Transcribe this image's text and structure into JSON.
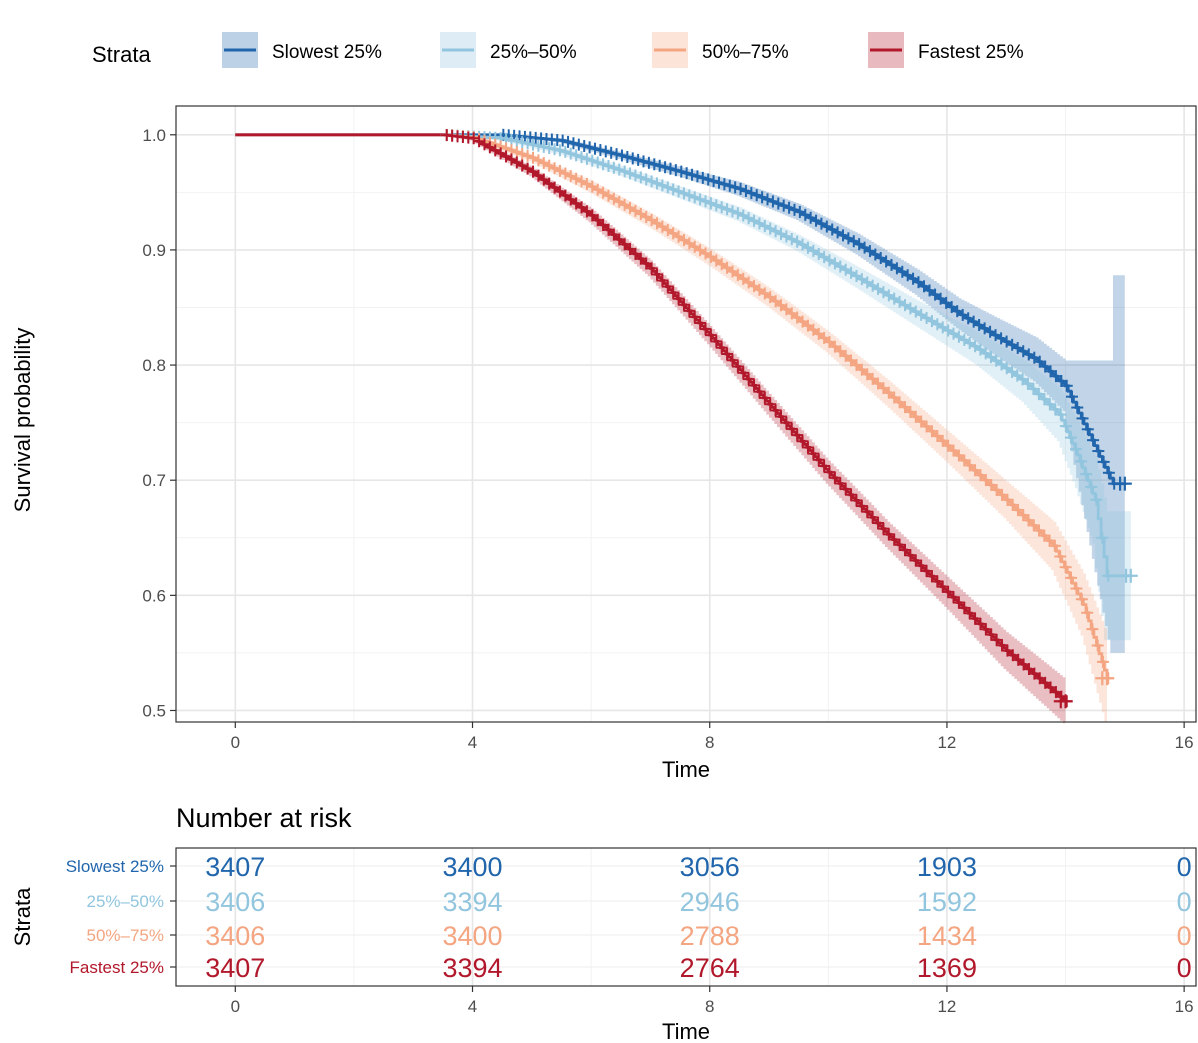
{
  "legend": {
    "title": "Strata",
    "position": "top"
  },
  "chart_data": [
    {
      "type": "line",
      "subtype": "kaplan-meier",
      "title": "",
      "xlabel": "Time",
      "ylabel": "Survival probability",
      "xlim": [
        -1,
        16.2
      ],
      "ylim": [
        0.49,
        1.025
      ],
      "xticks": [
        0,
        4,
        8,
        12,
        16
      ],
      "yticks": [
        0.5,
        0.6,
        0.7,
        0.8,
        0.9,
        1.0
      ],
      "ytick_labels": [
        "0.5",
        "0.6",
        "0.7",
        "0.8",
        "0.9",
        "1.0"
      ],
      "grid": true,
      "series": [
        {
          "name": "Slowest 25%",
          "color": "#2166ac",
          "x": [
            0,
            3.5,
            4.5,
            5.5,
            6.5,
            7.5,
            8.5,
            9.5,
            10.5,
            11.5,
            12.2,
            12.8,
            13.5,
            14.0,
            14.8,
            15.0
          ],
          "y": [
            1.0,
            1.0,
            1.0,
            0.995,
            0.982,
            0.968,
            0.953,
            0.933,
            0.905,
            0.872,
            0.845,
            0.826,
            0.805,
            0.782,
            0.697,
            0.697
          ],
          "ci_lower": [
            1.0,
            1.0,
            1.0,
            0.993,
            0.979,
            0.964,
            0.947,
            0.926,
            0.896,
            0.861,
            0.832,
            0.81,
            0.786,
            0.76,
            0.55,
            0.55
          ],
          "ci_upper": [
            1.0,
            1.0,
            1.0,
            0.997,
            0.985,
            0.972,
            0.959,
            0.94,
            0.914,
            0.883,
            0.858,
            0.842,
            0.824,
            0.804,
            0.878,
            0.878
          ]
        },
        {
          "name": "25%–50%",
          "color": "#92c5de",
          "x": [
            0,
            3.5,
            4.5,
            5.5,
            6.5,
            7.5,
            8.5,
            9.5,
            10.5,
            11.5,
            12.5,
            13.3,
            13.9,
            14.2,
            14.5,
            14.7,
            15.1
          ],
          "y": [
            1.0,
            1.0,
            0.997,
            0.986,
            0.969,
            0.95,
            0.931,
            0.906,
            0.876,
            0.845,
            0.815,
            0.786,
            0.757,
            0.722,
            0.683,
            0.617,
            0.617
          ],
          "ci_lower": [
            1.0,
            1.0,
            0.995,
            0.983,
            0.965,
            0.945,
            0.925,
            0.899,
            0.867,
            0.834,
            0.801,
            0.768,
            0.734,
            0.693,
            0.645,
            0.561,
            0.561
          ],
          "ci_upper": [
            1.0,
            1.0,
            0.999,
            0.989,
            0.973,
            0.955,
            0.937,
            0.913,
            0.885,
            0.856,
            0.829,
            0.804,
            0.78,
            0.751,
            0.721,
            0.673,
            0.673
          ]
        },
        {
          "name": "50%–75%",
          "color": "#f4a582",
          "x": [
            0,
            3.5,
            4.0,
            5.0,
            6.0,
            7.0,
            8.0,
            9.0,
            10.0,
            11.0,
            12.0,
            13.0,
            13.8,
            14.3,
            14.7
          ],
          "y": [
            1.0,
            1.0,
            0.998,
            0.98,
            0.955,
            0.926,
            0.894,
            0.859,
            0.82,
            0.776,
            0.73,
            0.683,
            0.643,
            0.592,
            0.528
          ],
          "ci_lower": [
            1.0,
            1.0,
            0.996,
            0.977,
            0.95,
            0.92,
            0.887,
            0.851,
            0.811,
            0.765,
            0.717,
            0.667,
            0.622,
            0.565,
            0.49
          ],
          "ci_upper": [
            1.0,
            1.0,
            1.0,
            0.983,
            0.96,
            0.932,
            0.901,
            0.867,
            0.829,
            0.787,
            0.743,
            0.699,
            0.664,
            0.619,
            0.566
          ]
        },
        {
          "name": "Fastest 25%",
          "color": "#b2182b",
          "x": [
            0,
            3.5,
            4.0,
            5.0,
            6.0,
            7.0,
            8.0,
            9.0,
            10.0,
            11.0,
            12.0,
            13.0,
            14.0
          ],
          "y": [
            1.0,
            1.0,
            0.997,
            0.968,
            0.93,
            0.884,
            0.826,
            0.766,
            0.707,
            0.653,
            0.603,
            0.552,
            0.508
          ],
          "ci_lower": [
            1.0,
            1.0,
            0.995,
            0.964,
            0.924,
            0.877,
            0.818,
            0.757,
            0.697,
            0.642,
            0.59,
            0.536,
            0.489
          ],
          "ci_upper": [
            1.0,
            1.0,
            0.999,
            0.972,
            0.936,
            0.891,
            0.834,
            0.775,
            0.717,
            0.664,
            0.616,
            0.568,
            0.527
          ]
        }
      ]
    },
    {
      "type": "table",
      "title": "Number at risk",
      "xlabel": "Time",
      "ylabel": "Strata",
      "xticks": [
        0,
        4,
        8,
        12,
        16
      ],
      "times": [
        0,
        4,
        8,
        12,
        16
      ],
      "rows": [
        {
          "name": "Slowest 25%",
          "color": "#2166ac",
          "values": [
            "3407",
            "3400",
            "3056",
            "1903",
            "0"
          ]
        },
        {
          "name": "25%–50%",
          "color": "#92c5de",
          "values": [
            "3406",
            "3394",
            "2946",
            "1592",
            "0"
          ]
        },
        {
          "name": "50%–75%",
          "color": "#f4a582",
          "values": [
            "3406",
            "3400",
            "2788",
            "1434",
            "0"
          ]
        },
        {
          "name": "Fastest 25%",
          "color": "#b2182b",
          "values": [
            "3407",
            "3394",
            "2764",
            "1369",
            "0"
          ]
        }
      ]
    }
  ]
}
